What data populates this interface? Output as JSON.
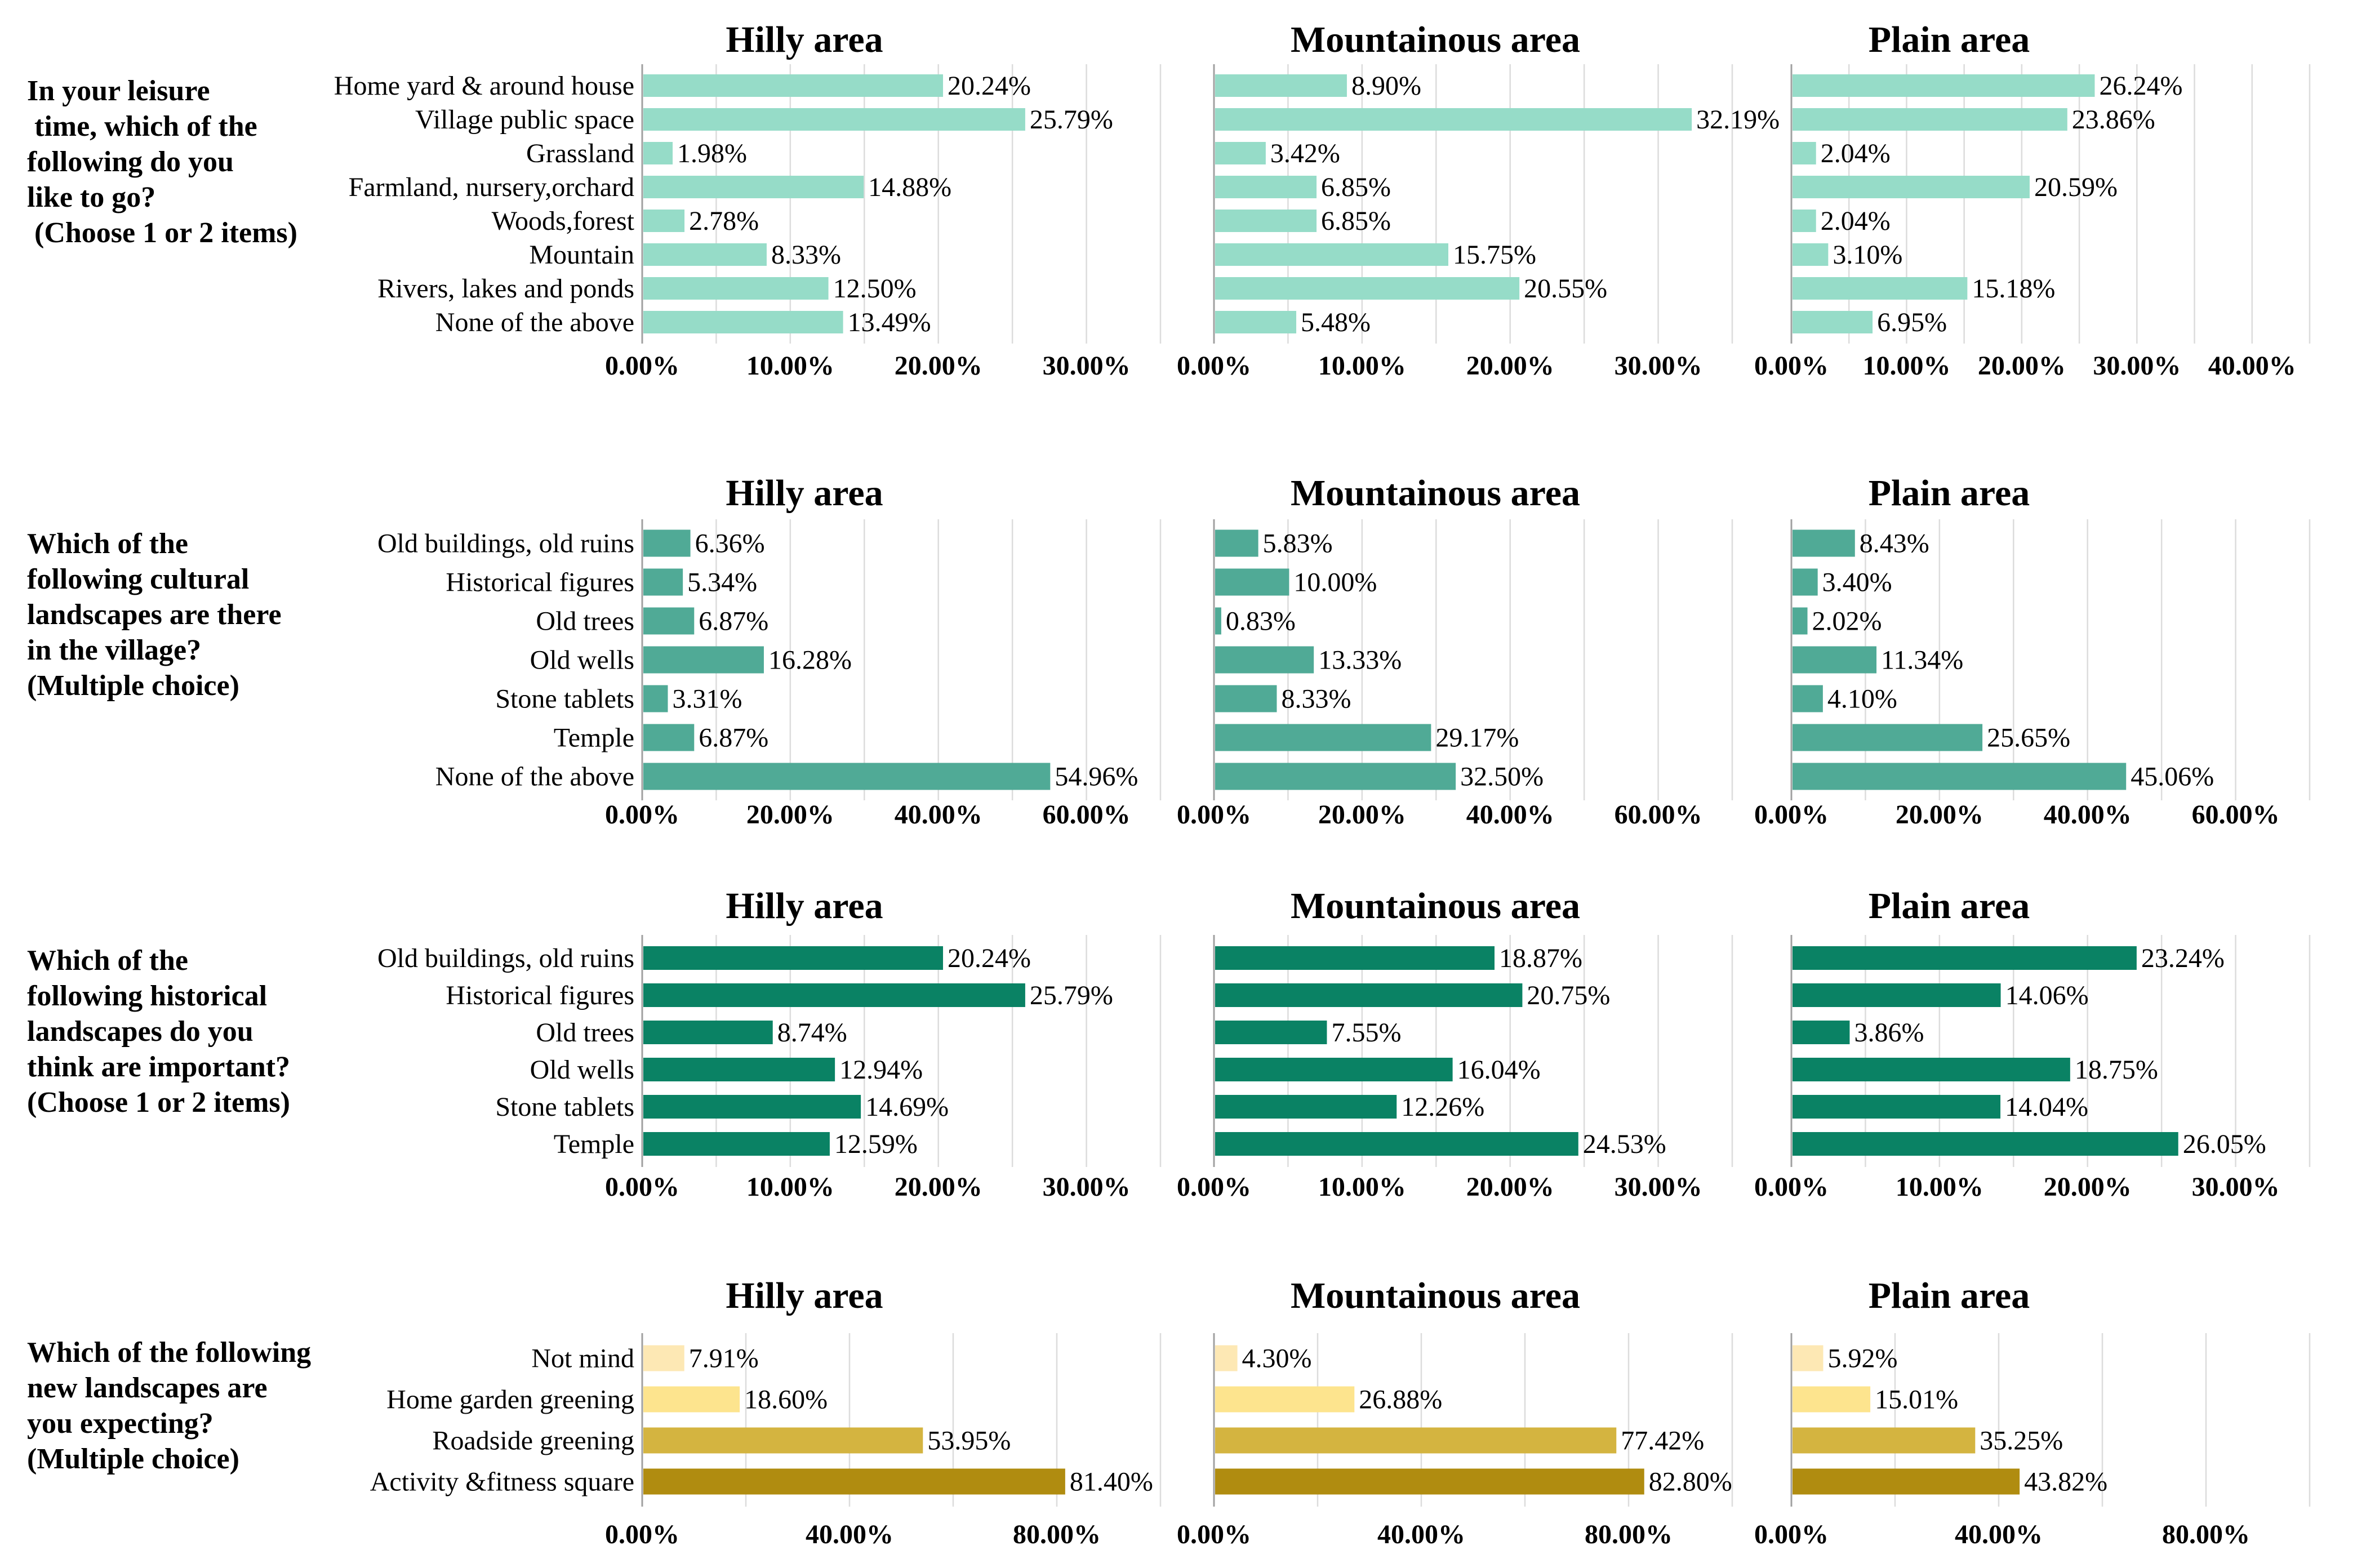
{
  "chart_data": [
    {
      "type": "bar",
      "orientation": "horizontal",
      "question": [
        "In your leisure",
        " time, which of the",
        "following do you",
        "like to go?",
        " (Choose 1 or 2 items)"
      ],
      "categories": [
        "Home yard & around house",
        "Village public space",
        "Grassland",
        "Farmland, nursery,orchard",
        "Woods,forest",
        "Mountain",
        "Rivers, lakes and ponds",
        "None of the above"
      ],
      "color": "#96dcc8",
      "panels": [
        {
          "title": "Hilly  area",
          "values": [
            20.24,
            25.79,
            1.98,
            14.88,
            2.78,
            8.33,
            12.5,
            13.49
          ],
          "labels": [
            "20.24%",
            "25.79%",
            "1.98%",
            "14.88%",
            "2.78%",
            "8.33%",
            "12.50%",
            "13.49%"
          ],
          "ticks": [
            "0.00%",
            "10.00%",
            "20.00%",
            "30.00%"
          ],
          "xlim": [
            0,
            35
          ]
        },
        {
          "title": "Mountainous area",
          "values": [
            8.9,
            32.19,
            3.42,
            6.85,
            6.85,
            15.75,
            20.55,
            5.48
          ],
          "labels": [
            "8.90%",
            "32.19%",
            "3.42%",
            "6.85%",
            "6.85%",
            "15.75%",
            "20.55%",
            "5.48%"
          ],
          "ticks": [
            "0.00%",
            "10.00%",
            "20.00%",
            "30.00%"
          ],
          "xlim": [
            0,
            35
          ]
        },
        {
          "title": "Plain area",
          "values": [
            26.24,
            23.86,
            2.04,
            20.59,
            2.04,
            3.1,
            15.18,
            6.95
          ],
          "labels": [
            "26.24%",
            "23.86%",
            "2.04%",
            "20.59%",
            "2.04%",
            "3.10%",
            "15.18%",
            "6.95%"
          ],
          "ticks": [
            "0.00%",
            "10.00%",
            "20.00%",
            "30.00%",
            "40.00%"
          ],
          "xlim": [
            0,
            45
          ]
        }
      ]
    },
    {
      "type": "bar",
      "orientation": "horizontal",
      "question": [
        "Which of the",
        "following cultural",
        "landscapes are there",
        "in the village?",
        "(Multiple choice)"
      ],
      "categories": [
        "Old buildings, old ruins",
        "Historical figures",
        "Old trees",
        "Old wells",
        "Stone tablets",
        "Temple",
        "None of the above"
      ],
      "color": "#50aa96",
      "panels": [
        {
          "title": "Hilly  area",
          "values": [
            6.36,
            5.34,
            6.87,
            16.28,
            3.31,
            6.87,
            54.96
          ],
          "labels": [
            "6.36%",
            "5.34%",
            "6.87%",
            "16.28%",
            "3.31%",
            "6.87%",
            "54.96%"
          ],
          "ticks": [
            "0.00%",
            "20.00%",
            "40.00%",
            "60.00%"
          ],
          "xlim": [
            0,
            70
          ]
        },
        {
          "title": "Mountainous area",
          "values": [
            5.83,
            10.0,
            0.83,
            13.33,
            8.33,
            29.17,
            32.5
          ],
          "labels": [
            "5.83%",
            "10.00%",
            "0.83%",
            "13.33%",
            "8.33%",
            "29.17%",
            "32.50%"
          ],
          "ticks": [
            "0.00%",
            "20.00%",
            "40.00%",
            "60.00%"
          ],
          "xlim": [
            0,
            70
          ]
        },
        {
          "title": "Plain area",
          "values": [
            8.43,
            3.4,
            2.02,
            11.34,
            4.1,
            25.65,
            45.06
          ],
          "labels": [
            "8.43%",
            "3.40%",
            "2.02%",
            "11.34%",
            "4.10%",
            "25.65%",
            "45.06%"
          ],
          "ticks": [
            "0.00%",
            "20.00%",
            "40.00%",
            "60.00%"
          ],
          "xlim": [
            0,
            70
          ]
        }
      ]
    },
    {
      "type": "bar",
      "orientation": "horizontal",
      "question": [
        "Which of the",
        "following historical",
        "landscapes do you",
        "think are important?",
        "(Choose 1 or 2 items)"
      ],
      "categories": [
        "Old buildings, old ruins",
        "Historical figures",
        "Old trees",
        "Old wells",
        "Stone tablets",
        "Temple"
      ],
      "color": "#0a8264",
      "panels": [
        {
          "title": "Hilly  area",
          "values": [
            20.24,
            25.79,
            8.74,
            12.94,
            14.69,
            12.59
          ],
          "labels": [
            "20.24%",
            "25.79%",
            "8.74%",
            "12.94%",
            "14.69%",
            "12.59%"
          ],
          "ticks": [
            "0.00%",
            "10.00%",
            "20.00%",
            "30.00%"
          ],
          "xlim": [
            0,
            35
          ]
        },
        {
          "title": "Mountainous area",
          "values": [
            18.87,
            20.75,
            7.55,
            16.04,
            12.26,
            24.53
          ],
          "labels": [
            "18.87%",
            "20.75%",
            "7.55%",
            "16.04%",
            "12.26%",
            "24.53%"
          ],
          "ticks": [
            "0.00%",
            "10.00%",
            "20.00%",
            "30.00%"
          ],
          "xlim": [
            0,
            35
          ]
        },
        {
          "title": "Plain area",
          "values": [
            23.24,
            14.06,
            3.86,
            18.75,
            14.04,
            26.05
          ],
          "labels": [
            "23.24%",
            "14.06%",
            "3.86%",
            "18.75%",
            "14.04%",
            "26.05%"
          ],
          "ticks": [
            "0.00%",
            "10.00%",
            "20.00%",
            "30.00%"
          ],
          "xlim": [
            0,
            35
          ]
        }
      ]
    },
    {
      "type": "bar",
      "orientation": "horizontal",
      "question": [
        "Which of the following",
        "new landscapes are",
        "you expecting?",
        "(Multiple choice)"
      ],
      "categories": [
        "Not mind",
        "Home garden greening",
        "Roadside greening",
        "Activity &fitness square"
      ],
      "colors": [
        "#fde8b4",
        "#fde48e",
        "#d4b440",
        "#b08c10"
      ],
      "panels": [
        {
          "title": "Hilly  area",
          "values": [
            7.91,
            18.6,
            53.95,
            81.4
          ],
          "labels": [
            "7.91%",
            "18.60%",
            "53.95%",
            "81.40%"
          ],
          "ticks": [
            "0.00%",
            "40.00%",
            "80.00%"
          ],
          "xlim": [
            0,
            100
          ]
        },
        {
          "title": "Mountainous area",
          "values": [
            4.3,
            26.88,
            77.42,
            82.8
          ],
          "labels": [
            "4.30%",
            "26.88%",
            "77.42%",
            "82.80%"
          ],
          "ticks": [
            "0.00%",
            "40.00%",
            "80.00%"
          ],
          "xlim": [
            0,
            100
          ]
        },
        {
          "title": "Plain area",
          "values": [
            5.92,
            15.01,
            35.25,
            43.82
          ],
          "labels": [
            "5.92%",
            "15.01%",
            "35.25%",
            "43.82%"
          ],
          "ticks": [
            "0.00%",
            "40.00%",
            "80.00%"
          ],
          "xlim": [
            0,
            100
          ]
        }
      ]
    }
  ]
}
